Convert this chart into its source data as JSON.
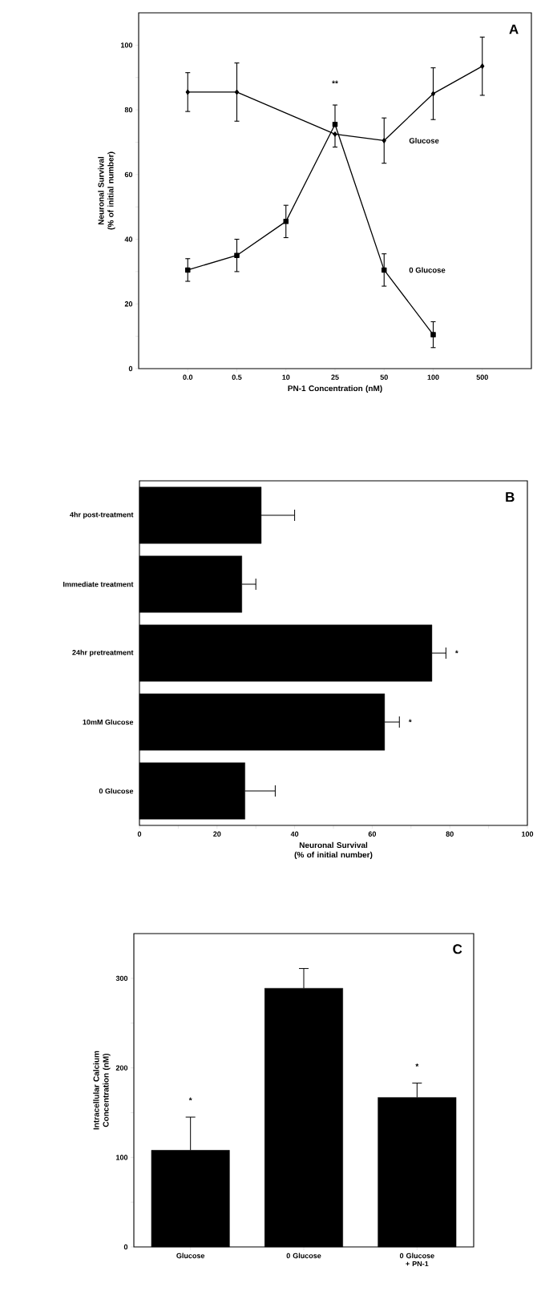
{
  "chart_data": [
    {
      "type": "line",
      "title": "A",
      "xlabel": "PN-1 Concentration (nM)",
      "ylabel": "Neuronal Survival (% of initial number)",
      "categories": [
        "0.0",
        "0.5",
        "10",
        "25",
        "50",
        "100",
        "500"
      ],
      "series": [
        {
          "name": "Glucose",
          "color": "#000000",
          "marker": "diamond",
          "values": [
            85.5,
            85.5,
            null,
            72.5,
            70.5,
            85,
            93.5
          ],
          "errors": [
            6,
            9,
            null,
            [
              68.5,
              72.5
            ],
            7,
            8,
            9
          ]
        },
        {
          "name": "0 Glucose",
          "color": "#000000",
          "marker": "square",
          "values": [
            30.5,
            35,
            45.5,
            75.5,
            30.5,
            10.5,
            null
          ],
          "errors": [
            3.5,
            5,
            5,
            [
              75.5,
              81.5
            ],
            5,
            4,
            null
          ]
        }
      ],
      "ylim": [
        0,
        110
      ],
      "yticks": [
        0,
        {
          "value": 10,
          "label": null
        },
        20,
        {
          "value": 30,
          "label": null
        },
        40,
        {
          "value": 50,
          "label": null
        },
        60,
        {
          "value": 70,
          "label": null
        },
        80,
        {
          "value": 90,
          "label": null
        },
        100
      ],
      "annotations": [
        "**"
      ]
    },
    {
      "type": "bar",
      "orientation": "horizontal",
      "title": "B",
      "xlabel": "Neuronal Survival (% of initial number)",
      "categories": [
        "4hr post-treatment",
        "Immediate treatment",
        "24hr pretreatment",
        "10mM Glucose",
        "0 Glucose"
      ],
      "values": [
        31.4,
        26.4,
        75.4,
        63.2,
        27.2
      ],
      "color": "#000000",
      "errors": [
        [
          31.4,
          40
        ],
        [
          26.4,
          30
        ],
        [
          75.4,
          79
        ],
        [
          63.2,
          67
        ],
        [
          27.2,
          35
        ]
      ],
      "xlim": [
        0,
        100
      ],
      "xticks": [
        0,
        {
          "value": 10,
          "label": null
        },
        20,
        {
          "value": 30,
          "label": null
        },
        40,
        {
          "value": 50,
          "label": null
        },
        60,
        {
          "value": 70,
          "label": null
        },
        80,
        {
          "value": 90,
          "label": null
        },
        100
      ],
      "annotations": [
        "*",
        "*"
      ]
    },
    {
      "type": "bar",
      "title": "C",
      "ylabel": "Intracellular Calcium Concentration (nM)",
      "categories": [
        "Glucose",
        "0 Glucose",
        "0 Glucose + PN-1"
      ],
      "values": [
        108,
        289,
        167
      ],
      "color": "#000000",
      "errors": [
        [
          108,
          145
        ],
        [
          289,
          311
        ],
        [
          167,
          183
        ]
      ],
      "ylim": [
        0,
        350
      ],
      "yticks": [
        0,
        {
          "value": 50,
          "label": null
        },
        100,
        {
          "value": 150,
          "label": null
        },
        200,
        {
          "value": 250,
          "label": null
        },
        300
      ],
      "annotations": [
        "*",
        "*"
      ]
    }
  ]
}
